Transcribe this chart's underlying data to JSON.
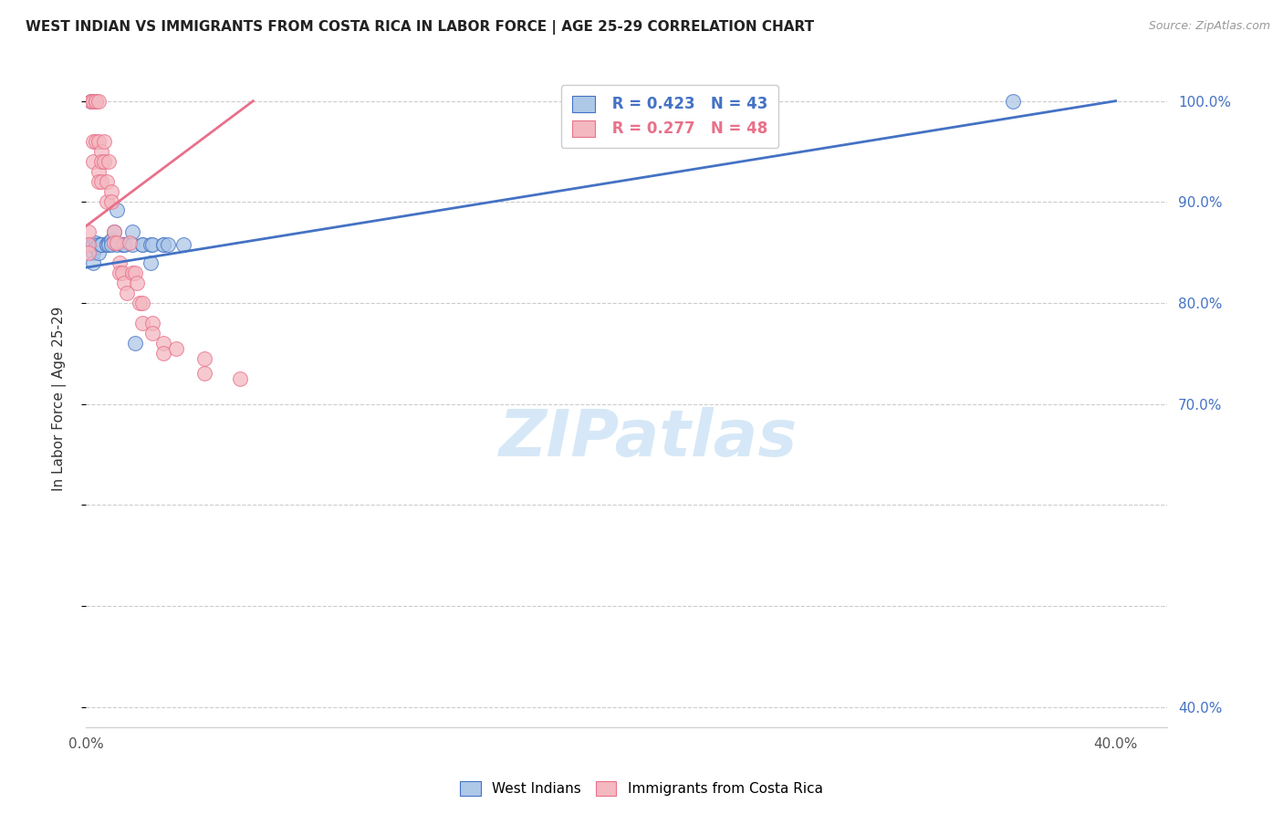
{
  "title": "WEST INDIAN VS IMMIGRANTS FROM COSTA RICA IN LABOR FORCE | AGE 25-29 CORRELATION CHART",
  "source": "Source: ZipAtlas.com",
  "ylabel": "In Labor Force | Age 25-29",
  "legend_blue_R": "R = 0.423",
  "legend_blue_N": "N = 43",
  "legend_pink_R": "R = 0.277",
  "legend_pink_N": "N = 48",
  "blue_label": "West Indians",
  "pink_label": "Immigrants from Costa Rica",
  "blue_fill_color": "#aec8e8",
  "blue_edge_color": "#4472c4",
  "pink_fill_color": "#f4b8c1",
  "pink_edge_color": "#e8718a",
  "blue_line_color": "#4472c4",
  "pink_line_color": "#e8718a",
  "background_color": "#ffffff",
  "grid_color": "#cccccc",
  "right_axis_color": "#4472c4",
  "watermark_text": "ZIPatlas",
  "watermark_color": "#d6e8f7",
  "blue_scatter_x": [
    0.001,
    0.001,
    0.002,
    0.002,
    0.003,
    0.003,
    0.003,
    0.003,
    0.003,
    0.003,
    0.003,
    0.004,
    0.004,
    0.004,
    0.005,
    0.005,
    0.006,
    0.006,
    0.008,
    0.008,
    0.009,
    0.009,
    0.01,
    0.01,
    0.011,
    0.012,
    0.012,
    0.014,
    0.015,
    0.015,
    0.018,
    0.018,
    0.019,
    0.022,
    0.022,
    0.025,
    0.025,
    0.026,
    0.03,
    0.03,
    0.032,
    0.038,
    0.36
  ],
  "blue_scatter_y": [
    0.858,
    0.858,
    1.0,
    1.0,
    1.0,
    0.858,
    0.85,
    0.84,
    0.858,
    0.858,
    0.858,
    0.86,
    0.855,
    0.855,
    0.858,
    0.85,
    0.858,
    0.858,
    0.858,
    0.858,
    0.86,
    0.858,
    0.862,
    0.858,
    0.87,
    0.892,
    0.858,
    0.858,
    0.858,
    0.858,
    0.87,
    0.858,
    0.76,
    0.858,
    0.858,
    0.858,
    0.84,
    0.858,
    0.858,
    0.858,
    0.858,
    0.858,
    1.0
  ],
  "pink_scatter_x": [
    0.001,
    0.001,
    0.001,
    0.002,
    0.002,
    0.003,
    0.003,
    0.003,
    0.004,
    0.004,
    0.004,
    0.005,
    0.005,
    0.005,
    0.005,
    0.006,
    0.006,
    0.006,
    0.007,
    0.007,
    0.008,
    0.008,
    0.009,
    0.01,
    0.01,
    0.011,
    0.011,
    0.012,
    0.013,
    0.013,
    0.014,
    0.015,
    0.016,
    0.017,
    0.018,
    0.019,
    0.02,
    0.021,
    0.022,
    0.022,
    0.026,
    0.026,
    0.03,
    0.03,
    0.035,
    0.046,
    0.046,
    0.06
  ],
  "pink_scatter_y": [
    0.87,
    0.858,
    0.85,
    1.0,
    1.0,
    1.0,
    0.96,
    0.94,
    1.0,
    1.0,
    0.96,
    1.0,
    0.96,
    0.93,
    0.92,
    0.95,
    0.94,
    0.92,
    0.96,
    0.94,
    0.92,
    0.9,
    0.94,
    0.91,
    0.9,
    0.87,
    0.86,
    0.86,
    0.84,
    0.83,
    0.83,
    0.82,
    0.81,
    0.86,
    0.83,
    0.83,
    0.82,
    0.8,
    0.8,
    0.78,
    0.78,
    0.77,
    0.76,
    0.75,
    0.755,
    0.745,
    0.73,
    0.725
  ],
  "blue_line_x0": 0.0,
  "blue_line_x1": 0.4,
  "blue_line_y0": 0.835,
  "blue_line_y1": 1.0,
  "pink_line_x0": 0.0,
  "pink_line_x1": 0.065,
  "pink_line_y0": 0.876,
  "pink_line_y1": 1.0,
  "xlim_min": 0.0,
  "xlim_max": 0.42,
  "ylim_min": 0.38,
  "ylim_max": 1.03,
  "ytick_values": [
    0.4,
    0.5,
    0.6,
    0.7,
    0.8,
    0.9,
    1.0
  ],
  "right_ytick_values": [
    1.0,
    0.9,
    0.8,
    0.7,
    0.4
  ],
  "right_ytick_labels": [
    "100.0%",
    "90.0%",
    "80.0%",
    "70.0%",
    "40.0%"
  ],
  "xtick_values": [
    0.0,
    0.04,
    0.08,
    0.12,
    0.16,
    0.2,
    0.24,
    0.28,
    0.32,
    0.36,
    0.4
  ],
  "xtick_show": {
    "0.0": "0.0%",
    "0.4": "40.0%"
  }
}
